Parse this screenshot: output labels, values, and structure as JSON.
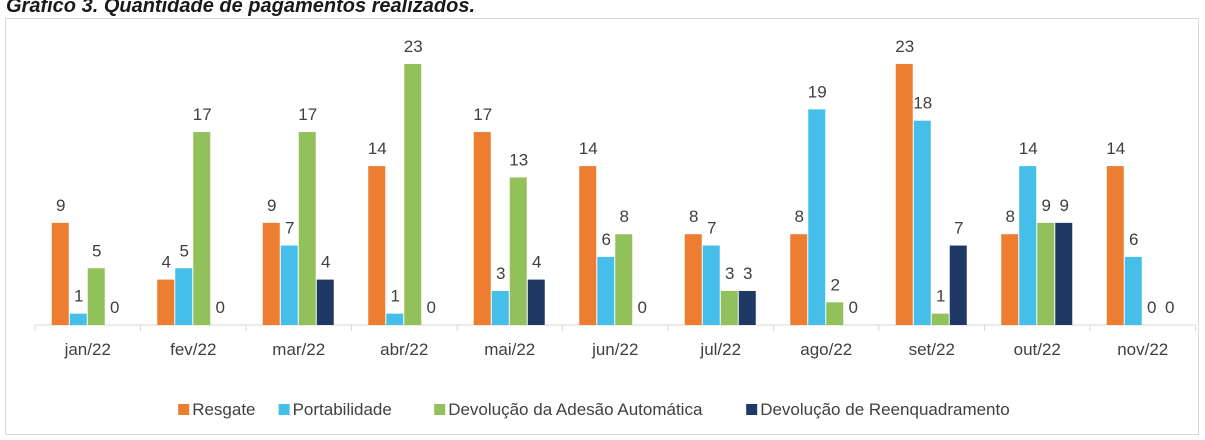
{
  "chart_data": {
    "type": "bar",
    "title": "Gráfico 3. Quantidade de pagamentos realizados.",
    "categories": [
      "jan/22",
      "fev/22",
      "mar/22",
      "abr/22",
      "mai/22",
      "jun/22",
      "jul/22",
      "ago/22",
      "set/22",
      "out/22",
      "nov/22"
    ],
    "series": [
      {
        "name": "Resgate",
        "color": "#ED7D31",
        "values": [
          9,
          4,
          9,
          14,
          17,
          14,
          8,
          8,
          23,
          8,
          14
        ]
      },
      {
        "name": "Portabilidade",
        "color": "#45BFEA",
        "values": [
          1,
          5,
          7,
          1,
          3,
          6,
          7,
          19,
          18,
          14,
          6
        ]
      },
      {
        "name": "Devolução da Adesão Automática",
        "color": "#92C05A",
        "values": [
          5,
          17,
          17,
          23,
          13,
          8,
          3,
          2,
          1,
          9,
          0
        ]
      },
      {
        "name": "Devolução de Reenquadramento",
        "color": "#1F3864",
        "values": [
          0,
          0,
          4,
          0,
          4,
          0,
          3,
          0,
          7,
          9,
          0
        ]
      }
    ],
    "legend": "bottom"
  }
}
